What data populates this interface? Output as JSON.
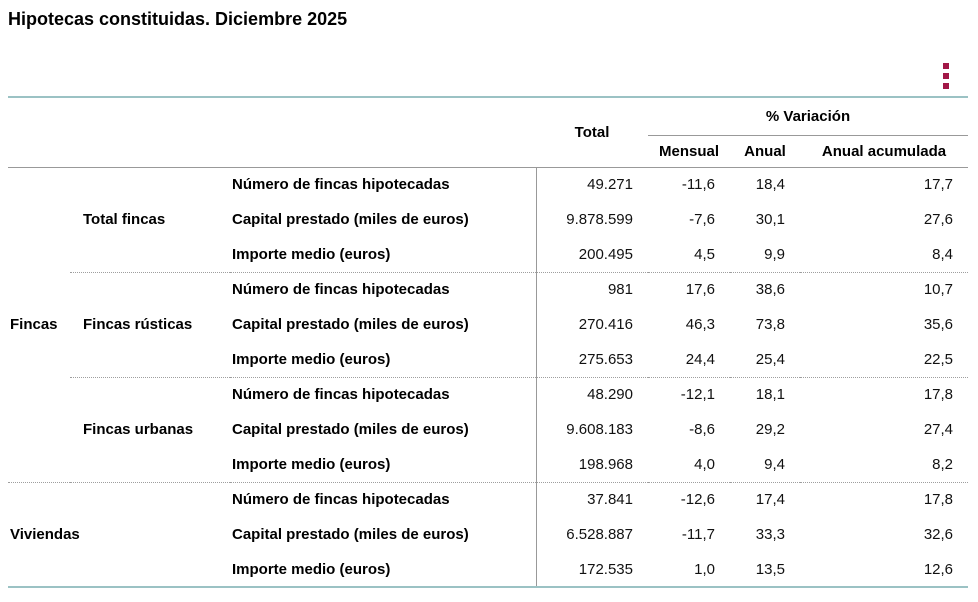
{
  "title": "Hipotecas constituidas. Diciembre 2025",
  "colors": {
    "accent": "#a21747",
    "table_border_teal": "#9bc2c4",
    "rule_gray": "#999999"
  },
  "menu": {
    "icon": "kebab-menu-icon"
  },
  "table": {
    "header": {
      "total": "Total",
      "variation_group": "% Variación",
      "monthly": "Mensual",
      "annual": "Anual",
      "annual_accumulated": "Anual acumulada"
    },
    "sections": [
      {
        "label": "Fincas",
        "groups": [
          {
            "label": "Total fincas",
            "rows": [
              {
                "label": "Número de fincas hipotecadas",
                "total": "49.271",
                "mensual": "-11,6",
                "anual": "18,4",
                "acumulada": "17,7"
              },
              {
                "label": "Capital prestado (miles de euros)",
                "total": "9.878.599",
                "mensual": "-7,6",
                "anual": "30,1",
                "acumulada": "27,6"
              },
              {
                "label": "Importe medio (euros)",
                "total": "200.495",
                "mensual": "4,5",
                "anual": "9,9",
                "acumulada": "8,4"
              }
            ]
          },
          {
            "label": "Fincas rústicas",
            "rows": [
              {
                "label": "Número de fincas hipotecadas",
                "total": "981",
                "mensual": "17,6",
                "anual": "38,6",
                "acumulada": "10,7"
              },
              {
                "label": "Capital prestado (miles de euros)",
                "total": "270.416",
                "mensual": "46,3",
                "anual": "73,8",
                "acumulada": "35,6"
              },
              {
                "label": "Importe medio (euros)",
                "total": "275.653",
                "mensual": "24,4",
                "anual": "25,4",
                "acumulada": "22,5"
              }
            ]
          },
          {
            "label": "Fincas urbanas",
            "rows": [
              {
                "label": "Número de fincas hipotecadas",
                "total": "48.290",
                "mensual": "-12,1",
                "anual": "18,1",
                "acumulada": "17,8"
              },
              {
                "label": "Capital prestado (miles de euros)",
                "total": "9.608.183",
                "mensual": "-8,6",
                "anual": "29,2",
                "acumulada": "27,4"
              },
              {
                "label": "Importe medio (euros)",
                "total": "198.968",
                "mensual": "4,0",
                "anual": "9,4",
                "acumulada": "8,2"
              }
            ]
          }
        ]
      },
      {
        "label": "Viviendas",
        "groups": [
          {
            "label": "",
            "rows": [
              {
                "label": "Número de fincas hipotecadas",
                "total": "37.841",
                "mensual": "-12,6",
                "anual": "17,4",
                "acumulada": "17,8"
              },
              {
                "label": "Capital prestado (miles de euros)",
                "total": "6.528.887",
                "mensual": "-11,7",
                "anual": "33,3",
                "acumulada": "32,6"
              },
              {
                "label": "Importe medio (euros)",
                "total": "172.535",
                "mensual": "1,0",
                "anual": "13,5",
                "acumulada": "12,6"
              }
            ]
          }
        ]
      }
    ]
  }
}
